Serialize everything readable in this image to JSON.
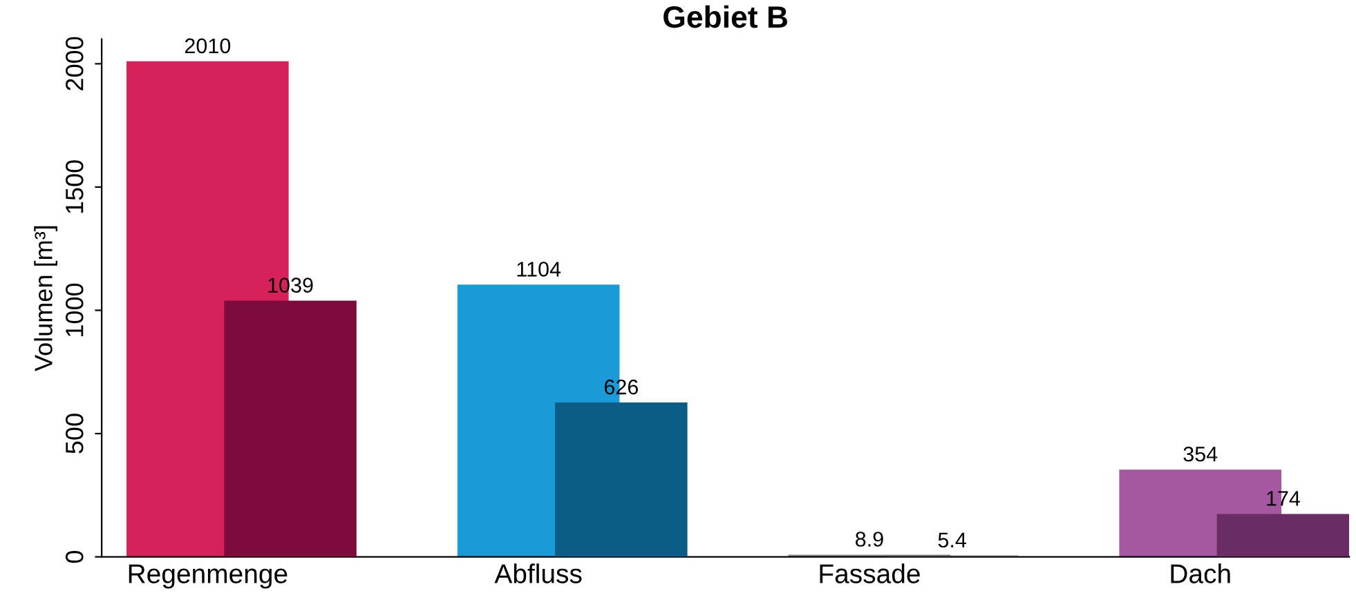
{
  "chart_data": {
    "type": "bar",
    "title": "Gebiet B",
    "ylabel": "Volumen [m³]",
    "categories": [
      "Regenmenge",
      "Abfluss",
      "Fassade",
      "Dach"
    ],
    "series": [
      {
        "colors": [
          "#d6215b",
          "#1a9bd7",
          "#8a8a8a",
          "#a5579f"
        ],
        "values": [
          2010,
          1104,
          8.9,
          354
        ]
      },
      {
        "colors": [
          "#7d0c3c",
          "#0b5c86",
          "#4a4a4a",
          "#6a2c64"
        ],
        "values": [
          1039,
          626,
          5.4,
          174
        ]
      }
    ],
    "ylim": [
      0,
      2100
    ],
    "yticks": [
      0,
      500,
      1000,
      1500,
      2000
    ],
    "grid": false,
    "legend": false,
    "data_labels": true
  }
}
